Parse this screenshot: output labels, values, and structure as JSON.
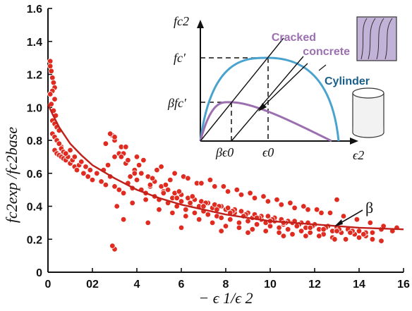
{
  "chart_data": {
    "type": "scatter",
    "xlabel": "− ϵ 1/ϵ 2",
    "ylabel": "fc2exp /fc2base",
    "xlim": [
      0,
      16
    ],
    "ylim": [
      0,
      1.6
    ],
    "x_ticks": [
      "0",
      "02",
      "4",
      "6",
      "8",
      "10",
      "12",
      "14",
      "16"
    ],
    "y_ticks": [
      "0",
      "0.2",
      "0.4",
      "0.6",
      "0.8",
      "1.0",
      "1.2",
      "1.4",
      "1.6"
    ],
    "grid": false,
    "curve_label": "β",
    "fit_curve": {
      "x": [
        0.0,
        0.2,
        0.5,
        1.0,
        1.5,
        2.0,
        3.0,
        4.0,
        5.0,
        6.0,
        7.0,
        8.0,
        9.0,
        10.0,
        11.0,
        12.0,
        13.0,
        14.0,
        15.0,
        16.0
      ],
      "y": [
        1.02,
        0.96,
        0.88,
        0.78,
        0.71,
        0.65,
        0.57,
        0.5,
        0.45,
        0.41,
        0.38,
        0.35,
        0.33,
        0.31,
        0.3,
        0.29,
        0.28,
        0.27,
        0.265,
        0.26
      ]
    },
    "points": {
      "x": [
        0.1,
        0.15,
        0.2,
        0.25,
        0.3,
        0.1,
        0.2,
        0.3,
        0.15,
        0.25,
        0.35,
        0.1,
        0.2,
        0.3,
        0.4,
        0.5,
        0.2,
        0.3,
        0.4,
        0.5,
        0.6,
        0.3,
        0.4,
        0.5,
        0.6,
        0.7,
        0.8,
        0.5,
        0.6,
        0.7,
        0.9,
        1.0,
        1.1,
        1.2,
        1.3,
        1.4,
        1.6,
        1.8,
        2.0,
        0.8,
        1.0,
        1.2,
        1.5,
        1.7,
        1.9,
        2.2,
        2.4,
        2.6,
        2.8,
        3.0,
        3.2,
        3.4,
        3.6,
        3.8,
        2.5,
        2.7,
        3.0,
        3.2,
        3.5,
        3.7,
        4.0,
        4.2,
        4.4,
        4.6,
        4.8,
        5.0,
        5.2,
        5.4,
        5.6,
        5.8,
        6.0,
        6.2,
        6.4,
        6.6,
        6.8,
        7.0,
        7.2,
        7.4,
        7.6,
        7.8,
        8.0,
        8.2,
        8.4,
        8.6,
        8.8,
        9.0,
        9.2,
        9.4,
        9.6,
        9.8,
        10.0,
        10.2,
        10.4,
        10.6,
        10.8,
        11.0,
        11.2,
        11.4,
        11.6,
        11.8,
        12.0,
        12.2,
        12.4,
        12.6,
        12.8,
        13.0,
        13.2,
        13.5,
        13.8,
        14.0,
        14.3,
        14.6,
        15.0,
        15.5,
        3.0,
        3.3,
        3.6,
        3.9,
        4.2,
        4.5,
        4.8,
        5.1,
        5.4,
        5.7,
        6.0,
        6.3,
        6.6,
        6.9,
        7.2,
        7.5,
        7.8,
        8.1,
        8.4,
        8.7,
        9.0,
        9.3,
        9.6,
        9.9,
        10.2,
        10.5,
        10.8,
        11.1,
        11.4,
        11.7,
        12.0,
        2.9,
        3.4,
        4.1,
        4.7,
        5.3,
        5.9,
        6.5,
        7.1,
        7.7,
        8.3,
        8.9,
        9.5,
        10.1,
        10.7,
        11.3,
        11.9,
        12.5,
        13.1,
        13.7,
        14.3,
        3.1,
        3.8,
        4.4,
        5.0,
        5.6,
        6.2,
        6.8,
        7.4,
        8.0,
        8.6,
        9.2,
        9.8,
        10.4,
        11.0,
        11.6,
        12.2,
        12.8,
        13.4,
        14.0,
        14.6,
        2.6,
        3.3,
        3.9,
        4.6,
        5.2,
        5.8,
        6.4,
        7.0,
        7.6,
        8.2,
        8.8,
        9.4,
        10.0,
        10.6,
        11.2,
        11.8,
        12.4,
        13.0,
        13.6,
        14.2,
        4.0,
        4.9,
        5.5,
        6.1,
        6.7,
        7.3,
        7.9,
        8.5,
        9.1,
        9.7,
        10.3,
        10.9,
        11.5,
        12.1,
        12.7,
        13.3,
        13.9,
        14.5,
        15.1,
        15.7,
        2.8,
        3.0,
        3.5,
        4.3,
        5.1,
        5.7,
        6.3,
        6.9,
        7.5,
        8.1,
        8.7,
        9.3,
        9.9,
        10.5,
        11.1,
        11.7,
        12.3,
        3.4,
        4.5,
        6.0,
        7.8,
        9.0,
        10.6,
        12.9,
        13.0,
        14.0,
        15.0
      ],
      "y": [
        1.28,
        1.22,
        1.18,
        1.15,
        1.12,
        1.25,
        1.1,
        1.05,
        1.02,
        0.98,
        0.95,
        1.08,
        0.92,
        0.9,
        0.88,
        0.86,
        0.84,
        0.82,
        0.8,
        0.78,
        0.76,
        0.74,
        0.72,
        0.71,
        0.7,
        0.69,
        0.68,
        0.78,
        0.75,
        0.73,
        0.7,
        0.66,
        0.68,
        0.64,
        0.62,
        0.65,
        0.6,
        0.58,
        0.56,
        0.72,
        0.74,
        0.7,
        0.67,
        0.64,
        0.62,
        0.6,
        0.55,
        0.53,
        0.58,
        0.52,
        0.5,
        0.48,
        0.54,
        0.51,
        0.62,
        0.65,
        0.7,
        0.72,
        0.66,
        0.58,
        0.56,
        0.5,
        0.48,
        0.52,
        0.46,
        0.44,
        0.49,
        0.42,
        0.45,
        0.4,
        0.43,
        0.38,
        0.41,
        0.36,
        0.4,
        0.37,
        0.35,
        0.39,
        0.34,
        0.33,
        0.38,
        0.32,
        0.36,
        0.3,
        0.34,
        0.31,
        0.33,
        0.29,
        0.32,
        0.3,
        0.28,
        0.31,
        0.27,
        0.29,
        0.26,
        0.3,
        0.28,
        0.25,
        0.27,
        0.24,
        0.29,
        0.26,
        0.23,
        0.28,
        0.25,
        0.27,
        0.24,
        0.26,
        0.23,
        0.25,
        0.22,
        0.24,
        0.26,
        0.25,
        0.8,
        0.76,
        0.68,
        0.62,
        0.6,
        0.58,
        0.55,
        0.52,
        0.5,
        0.48,
        0.47,
        0.45,
        0.44,
        0.43,
        0.42,
        0.41,
        0.4,
        0.39,
        0.38,
        0.37,
        0.36,
        0.35,
        0.34,
        0.34,
        0.33,
        0.32,
        0.31,
        0.31,
        0.3,
        0.3,
        0.29,
        0.83,
        0.72,
        0.65,
        0.57,
        0.53,
        0.49,
        0.46,
        0.42,
        0.4,
        0.37,
        0.35,
        0.33,
        0.32,
        0.3,
        0.29,
        0.28,
        0.27,
        0.26,
        0.25,
        0.24,
        0.4,
        0.42,
        0.44,
        0.38,
        0.36,
        0.34,
        0.32,
        0.3,
        0.28,
        0.27,
        0.26,
        0.25,
        0.24,
        0.23,
        0.22,
        0.22,
        0.21,
        0.2,
        0.21,
        0.2,
        0.78,
        0.7,
        0.6,
        0.53,
        0.48,
        0.45,
        0.42,
        0.4,
        0.38,
        0.36,
        0.34,
        0.33,
        0.31,
        0.3,
        0.28,
        0.27,
        0.26,
        0.25,
        0.24,
        0.23,
        0.7,
        0.62,
        0.56,
        0.58,
        0.54,
        0.56,
        0.52,
        0.5,
        0.48,
        0.46,
        0.44,
        0.42,
        0.4,
        0.38,
        0.36,
        0.34,
        0.32,
        0.3,
        0.28,
        0.27,
        0.84,
        0.82,
        0.76,
        0.68,
        0.64,
        0.6,
        0.57,
        0.54,
        0.52,
        0.49,
        0.47,
        0.45,
        0.43,
        0.41,
        0.39,
        0.38,
        0.36,
        0.32,
        0.3,
        0.27,
        0.25,
        0.24,
        0.22,
        0.2,
        0.44,
        0.21,
        0.19
      ]
    },
    "outlier_low": {
      "x": [
        3.0,
        2.9
      ],
      "y": [
        0.14,
        0.16
      ]
    },
    "inset": {
      "y_label": "fc2",
      "x_label": "ϵ2",
      "y_ticks": [
        "fc′",
        "βfc′"
      ],
      "x_ticks": [
        "βϵ0",
        "ϵ0"
      ],
      "cracked_label_line1": "Cracked",
      "cracked_label_line2": "concrete",
      "cylinder_label": "Cylinder",
      "color_cracked": "#9b6fb0",
      "color_cylinder": "#4aa3cf"
    },
    "colors": {
      "points": "#e02b20",
      "curve": "#c0201a"
    }
  }
}
